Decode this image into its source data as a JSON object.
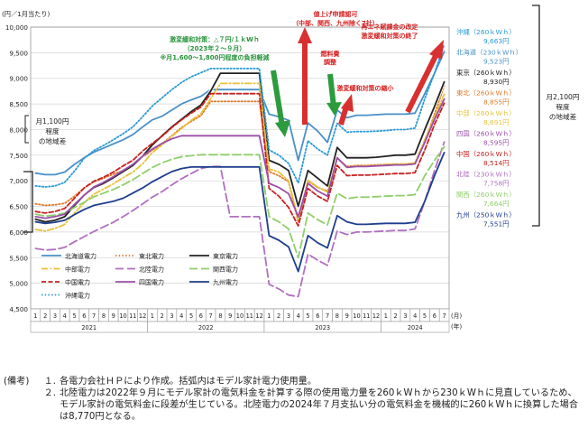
{
  "chart_data": {
    "type": "line",
    "unit_label": "(円／1月当たり)",
    "x_unit": "(月)\n(年)",
    "months": [
      "1",
      "2",
      "3",
      "4",
      "5",
      "6",
      "7",
      "8",
      "9",
      "10",
      "11",
      "12",
      "1",
      "2",
      "3",
      "4",
      "5",
      "6",
      "7",
      "8",
      "9",
      "10",
      "11",
      "12",
      "1",
      "2",
      "3",
      "4",
      "5",
      "6",
      "7",
      "8",
      "9",
      "10",
      "11",
      "12",
      "1",
      "2",
      "3",
      "4",
      "5",
      "6",
      "7"
    ],
    "years": [
      "2021",
      "2022",
      "2023",
      "2024"
    ],
    "ylim": [
      4500,
      10000
    ],
    "yticks": [
      "4,500",
      "5,000",
      "5,500",
      "6,000",
      "6,500",
      "7,000",
      "7,500",
      "8,000",
      "8,500",
      "9,000",
      "9,500",
      "10,000"
    ],
    "series": [
      {
        "name": "北海道電力",
        "color": "#4a90c8",
        "dash": "solid",
        "values": [
          7150,
          7120,
          7120,
          7170,
          7320,
          7450,
          7560,
          7640,
          7720,
          7800,
          7900,
          8050,
          8190,
          8260,
          8380,
          8500,
          8580,
          8650,
          8780,
          8780,
          8780,
          8780,
          8780,
          8780,
          8300,
          8250,
          8180,
          7400,
          8130,
          7970,
          7750,
          8380,
          8230,
          8280,
          8280,
          8290,
          8300,
          8300,
          8300,
          8320,
          8700,
          9100,
          9523
        ]
      },
      {
        "name": "東北電力",
        "color": "#e07a2a",
        "dash": "dot",
        "values": [
          6550,
          6520,
          6530,
          6560,
          6700,
          6860,
          6980,
          7050,
          7130,
          7200,
          7300,
          7460,
          7600,
          7720,
          7880,
          8040,
          8160,
          8270,
          8550,
          8550,
          8550,
          8550,
          8550,
          8550,
          7180,
          7100,
          6980,
          6200,
          7000,
          6870,
          6800,
          7440,
          7280,
          7300,
          7300,
          7310,
          7320,
          7320,
          7320,
          7340,
          7750,
          8300,
          8855
        ]
      },
      {
        "name": "東京電力",
        "color": "#222222",
        "dash": "solid",
        "values": [
          6250,
          6200,
          6230,
          6300,
          6520,
          6720,
          6870,
          6950,
          7060,
          7180,
          7300,
          7480,
          7700,
          7880,
          8050,
          8200,
          8350,
          8480,
          8750,
          9100,
          9100,
          9100,
          9100,
          9100,
          7400,
          7320,
          7200,
          6500,
          7200,
          7050,
          6900,
          7650,
          7450,
          7450,
          7450,
          7460,
          7480,
          7500,
          7500,
          7520,
          8000,
          8450,
          8930
        ]
      },
      {
        "name": "中部電力",
        "color": "#e6c23a",
        "dash": "dashdot",
        "values": [
          6050,
          6020,
          6070,
          6150,
          6370,
          6570,
          6740,
          6840,
          6940,
          7060,
          7170,
          7330,
          7550,
          7700,
          7870,
          8020,
          8180,
          8310,
          8600,
          8900,
          8900,
          8900,
          8900,
          8900,
          7230,
          7170,
          7000,
          6250,
          7010,
          6880,
          6780,
          7450,
          7260,
          7290,
          7290,
          7300,
          7320,
          7330,
          7330,
          7350,
          7800,
          8250,
          8691
        ]
      },
      {
        "name": "北陸電力",
        "color": "#b070c0",
        "dash": "longdash",
        "values": [
          5680,
          5650,
          5660,
          5700,
          5810,
          5910,
          6010,
          6100,
          6190,
          6300,
          6420,
          6550,
          6680,
          6790,
          6920,
          7040,
          7140,
          7240,
          7280,
          7280,
          6300,
          6300,
          6300,
          6300,
          4980,
          4890,
          4770,
          4740,
          5570,
          5450,
          5350,
          6020,
          5950,
          6000,
          6000,
          6010,
          6020,
          6030,
          6030,
          6060,
          6600,
          7200,
          7758
        ]
      },
      {
        "name": "関西電力",
        "color": "#8fcf6a",
        "dash": "longdash",
        "values": [
          6350,
          6310,
          6330,
          6370,
          6480,
          6580,
          6690,
          6760,
          6830,
          6920,
          7020,
          7140,
          7260,
          7350,
          7420,
          7470,
          7490,
          7510,
          7510,
          7510,
          7510,
          7510,
          7510,
          7510,
          6300,
          6200,
          6060,
          5500,
          6370,
          6240,
          6140,
          6760,
          6650,
          6680,
          6680,
          6690,
          6700,
          6710,
          6710,
          6730,
          7100,
          7400,
          7664
        ]
      },
      {
        "name": "中国電力",
        "color": "#c62222",
        "dash": "dash",
        "values": [
          6400,
          6370,
          6400,
          6460,
          6660,
          6860,
          6990,
          7070,
          7170,
          7290,
          7400,
          7580,
          7730,
          7870,
          8040,
          8190,
          8320,
          8440,
          8700,
          8700,
          8700,
          8700,
          8700,
          8700,
          6850,
          6700,
          6480,
          6120,
          6850,
          6700,
          6600,
          7300,
          7100,
          7110,
          7110,
          7120,
          7130,
          7140,
          7140,
          7160,
          7600,
          8100,
          8514
        ]
      },
      {
        "name": "四国電力",
        "color": "#9b4fa8",
        "dash": "solid",
        "values": [
          6300,
          6270,
          6300,
          6350,
          6540,
          6720,
          6880,
          6970,
          7080,
          7200,
          7320,
          7480,
          7620,
          7730,
          7820,
          7880,
          7880,
          7880,
          7880,
          7880,
          7880,
          7880,
          7880,
          7880,
          6950,
          6870,
          6750,
          6300,
          6950,
          6800,
          6700,
          7450,
          7260,
          7280,
          7280,
          7290,
          7300,
          7310,
          7310,
          7330,
          7750,
          8200,
          8595
        ]
      },
      {
        "name": "九州電力",
        "color": "#1f3e8c",
        "dash": "solid",
        "values": [
          6200,
          6170,
          6190,
          6230,
          6340,
          6440,
          6520,
          6560,
          6600,
          6660,
          6760,
          6860,
          6980,
          7080,
          7180,
          7240,
          7270,
          7270,
          7270,
          7270,
          7270,
          7270,
          7270,
          7270,
          5930,
          5840,
          5710,
          5230,
          5930,
          5790,
          5690,
          6320,
          6200,
          6150,
          6150,
          6160,
          6170,
          6170,
          6170,
          6190,
          6600,
          7100,
          7551
        ]
      },
      {
        "name": "沖縄電力",
        "color": "#2a9ad6",
        "dash": "dot",
        "values": [
          6900,
          6880,
          6900,
          6970,
          7190,
          7440,
          7590,
          7690,
          7800,
          7920,
          8050,
          8250,
          8460,
          8620,
          8780,
          8920,
          9030,
          9110,
          9190,
          9190,
          9190,
          9190,
          9190,
          9190,
          7600,
          7500,
          7340,
          6960,
          7780,
          7620,
          7500,
          8120,
          7950,
          7960,
          7960,
          7970,
          7980,
          8000,
          8000,
          8030,
          8600,
          9100,
          9663
        ]
      }
    ],
    "end_labels": [
      {
        "name": "沖縄",
        "kwh": "（260ｋWｈ）",
        "value": "9,663円",
        "color": "#2a9ad6"
      },
      {
        "name": "北海道",
        "kwh": "（230ｋWｈ）",
        "value": "9,523円",
        "color": "#4a90c8"
      },
      {
        "name": "東京",
        "kwh": "（260ｋWｈ）",
        "value": "8,930円",
        "color": "#222222"
      },
      {
        "name": "東北",
        "kwh": "（260ｋWｈ）",
        "value": "8,855円",
        "color": "#e07a2a"
      },
      {
        "name": "中部",
        "kwh": "（260ｋWｈ）",
        "value": "8,691円",
        "color": "#e6c23a"
      },
      {
        "name": "四国",
        "kwh": "（260ｋWｈ）",
        "value": "8,595円",
        "color": "#9b4fa8"
      },
      {
        "name": "中国",
        "kwh": "（260ｋWｈ）",
        "value": "8,514円",
        "color": "#c62222"
      },
      {
        "name": "北陸",
        "kwh": "（230ｋWｈ）",
        "value": "7,758円",
        "color": "#b070c0"
      },
      {
        "name": "関西",
        "kwh": "（260ｋWｈ）",
        "value": "7,664円",
        "color": "#8fcf6a"
      },
      {
        "name": "九州",
        "kwh": "（250ｋWｈ）",
        "value": "7,551円",
        "color": "#1f3e8c"
      }
    ],
    "annotations": {
      "left_diff": [
        "月1,100円",
        "程度",
        "の地域差"
      ],
      "right_diff": [
        "月2,100円",
        "程度",
        "の地域差"
      ],
      "subsidy": [
        "激変緩和対策：△７円/１ｋWｈ",
        "（2023年２～９月）",
        "※月1,600～1,800円程度の負担軽減"
      ],
      "price_hike": [
        "値上げ申請認可",
        "（中部、関西、九州除く7社）"
      ],
      "fuel_adj": [
        "燃料費",
        "調整"
      ],
      "subsidy_reduce": "激変緩和対策の縮小",
      "renew_levy": [
        "再エネ賦課金の改定",
        "激変緩和対策の終了"
      ]
    }
  },
  "notes": {
    "label": "(備考)",
    "items": [
      {
        "num": "１.",
        "text": "各電力会社ＨＰにより作成。括弧内はモデル家計電力使用量。"
      },
      {
        "num": "２.",
        "text": "北陸電力は2022年９月にモデル家計の電気料金を計算する際の使用電力量を260ｋWｈから230ｋWｈに見直しているため、モデル家計の電気料金に段差が生じている。北陸電力の2024年７月支払い分の電気料金を機械的に260ｋWｈに換算した場合は8,770円となる。"
      }
    ]
  }
}
